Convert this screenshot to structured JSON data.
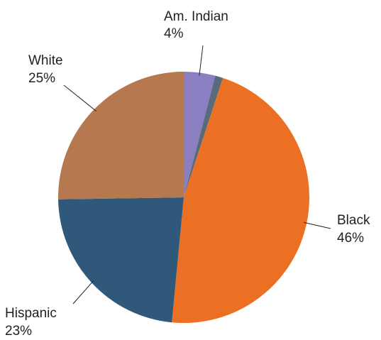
{
  "chart_data": {
    "type": "pie",
    "title": "",
    "slices": [
      {
        "name": "Am. Indian",
        "label": "4%",
        "value": 4,
        "color": "#8b7fc2"
      },
      {
        "name": "",
        "label": "",
        "value": 1,
        "color": "#596b7b"
      },
      {
        "name": "Black",
        "label": "46%",
        "value": 46,
        "color": "#ec7024"
      },
      {
        "name": "Hispanic",
        "label": "23%",
        "value": 23,
        "color": "#2f587a"
      },
      {
        "name": "White",
        "label": "25%",
        "value": 25,
        "color": "#b5784f"
      }
    ],
    "start_angle_deg": 0,
    "direction": "clockwise",
    "legend": "none"
  }
}
